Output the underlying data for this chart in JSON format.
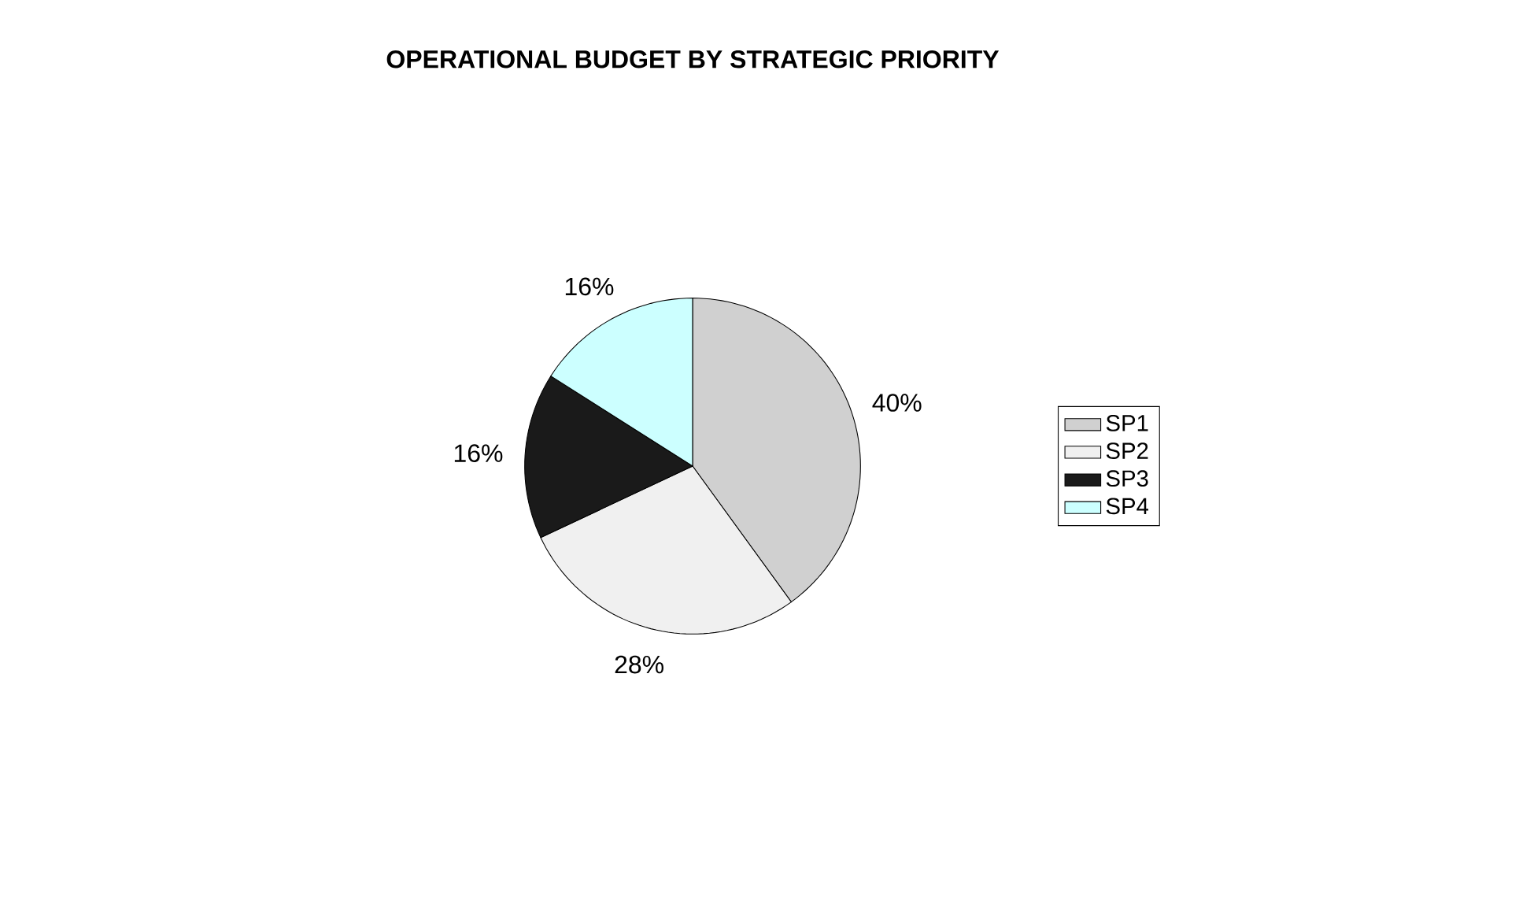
{
  "chart_data": {
    "type": "pie",
    "title": "OPERATIONAL BUDGET BY STRATEGIC PRIORITY",
    "categories": [
      "SP1",
      "SP2",
      "SP3",
      "SP4"
    ],
    "values": [
      40,
      28,
      16,
      16
    ],
    "value_labels": [
      "40%",
      "28%",
      "16%",
      "16%"
    ],
    "colors": [
      "#d0d0d0",
      "#f0f0f0",
      "#1a1a1a",
      "#ccffff"
    ],
    "legend": "right"
  }
}
